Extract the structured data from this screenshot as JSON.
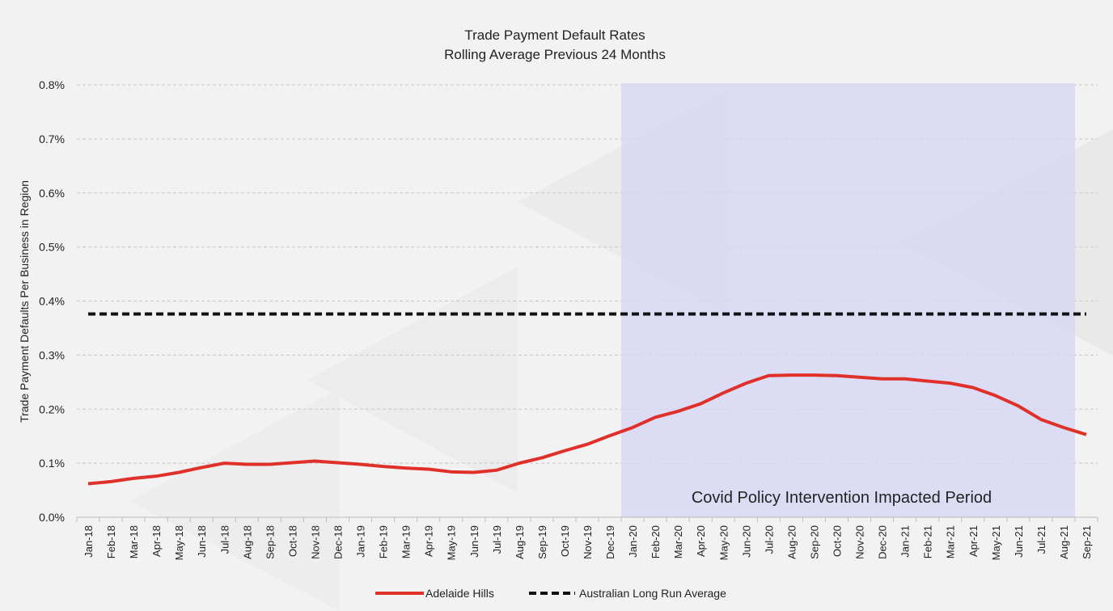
{
  "chart_data": {
    "type": "line",
    "title": "Trade Payment Default Rates",
    "subtitle": "Rolling Average Previous 24 Months",
    "ylabel": "Trade Payment Defaults Per Business in Region",
    "xlabel": "",
    "ylim": [
      0,
      0.008
    ],
    "yticks": [
      "0.0%",
      "0.1%",
      "0.2%",
      "0.3%",
      "0.4%",
      "0.5%",
      "0.6%",
      "0.7%",
      "0.8%"
    ],
    "grid": true,
    "legend_position": "bottom",
    "categories": [
      "Jan-18",
      "Feb-18",
      "Mar-18",
      "Apr-18",
      "May-18",
      "Jun-18",
      "Jul-18",
      "Aug-18",
      "Sep-18",
      "Oct-18",
      "Nov-18",
      "Dec-18",
      "Jan-19",
      "Feb-19",
      "Mar-19",
      "Apr-19",
      "May-19",
      "Jun-19",
      "Jul-19",
      "Aug-19",
      "Sep-19",
      "Oct-19",
      "Nov-19",
      "Dec-19",
      "Jan-20",
      "Feb-20",
      "Mar-20",
      "Apr-20",
      "May-20",
      "Jun-20",
      "Jul-20",
      "Aug-20",
      "Sep-20",
      "Oct-20",
      "Nov-20",
      "Dec-20",
      "Jan-21",
      "Feb-21",
      "Mar-21",
      "Apr-21",
      "May-21",
      "Jun-21",
      "Jul-21",
      "Aug-21",
      "Sep-21"
    ],
    "series": [
      {
        "name": "Adelaide Hills",
        "color": "#e0302a",
        "style": "solid",
        "values": [
          0.00062,
          0.00066,
          0.00072,
          0.00076,
          0.00083,
          0.00092,
          0.001,
          0.00098,
          0.00098,
          0.00101,
          0.00104,
          0.00101,
          0.00098,
          0.00094,
          0.00091,
          0.00089,
          0.00084,
          0.00083,
          0.00087,
          0.001,
          0.0011,
          0.00123,
          0.00135,
          0.00151,
          0.00166,
          0.00185,
          0.00196,
          0.0021,
          0.0023,
          0.00248,
          0.00262,
          0.00263,
          0.00263,
          0.00262,
          0.00259,
          0.00256,
          0.00256,
          0.00252,
          0.00248,
          0.0024,
          0.00225,
          0.00206,
          0.00181,
          0.00166,
          0.00153
        ]
      },
      {
        "name": "Australian Long Run Average",
        "color": "#111111",
        "style": "dashed",
        "values": [
          0.00376,
          0.00376,
          0.00376,
          0.00376,
          0.00376,
          0.00376,
          0.00376,
          0.00376,
          0.00376,
          0.00376,
          0.00376,
          0.00376,
          0.00376,
          0.00376,
          0.00376,
          0.00376,
          0.00376,
          0.00376,
          0.00376,
          0.00376,
          0.00376,
          0.00376,
          0.00376,
          0.00376,
          0.00376,
          0.00376,
          0.00376,
          0.00376,
          0.00376,
          0.00376,
          0.00376,
          0.00376,
          0.00376,
          0.00376,
          0.00376,
          0.00376,
          0.00376,
          0.00376,
          0.00376,
          0.00376,
          0.00376,
          0.00376,
          0.00376,
          0.00376,
          0.00376
        ]
      }
    ],
    "annotations": [
      {
        "text": "Covid Policy Intervention Impacted Period",
        "type": "shaded-region",
        "from": "Jan-20",
        "to": "Aug-21",
        "color": "#d6d6f5"
      }
    ]
  }
}
